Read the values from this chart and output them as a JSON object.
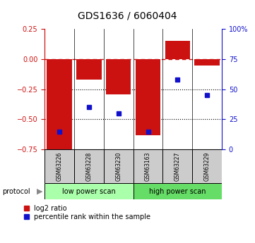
{
  "title": "GDS1636 / 6060404",
  "categories": [
    "GSM63226",
    "GSM63228",
    "GSM63230",
    "GSM63163",
    "GSM63227",
    "GSM63229"
  ],
  "log2_ratio": [
    -0.78,
    -0.17,
    -0.29,
    -0.63,
    0.15,
    -0.05
  ],
  "percentile_rank": [
    15,
    35,
    30,
    15,
    58,
    45
  ],
  "bar_color": "#cc1111",
  "dot_color": "#1111cc",
  "ylim_left": [
    -0.75,
    0.25
  ],
  "ylim_right": [
    0,
    100
  ],
  "yticks_left": [
    0.25,
    0,
    -0.25,
    -0.5,
    -0.75
  ],
  "yticks_right": [
    100,
    75,
    50,
    25,
    0
  ],
  "protocol_labels": [
    "low power scan",
    "high power scan"
  ],
  "protocol_colors": [
    "#aaffaa",
    "#66dd66"
  ],
  "legend_labels": [
    "log2 ratio",
    "percentile rank within the sample"
  ],
  "bar_width": 0.85,
  "dotted_lines": [
    -0.25,
    -0.5
  ],
  "zero_line": 0.0,
  "bg_color": "#ffffff"
}
